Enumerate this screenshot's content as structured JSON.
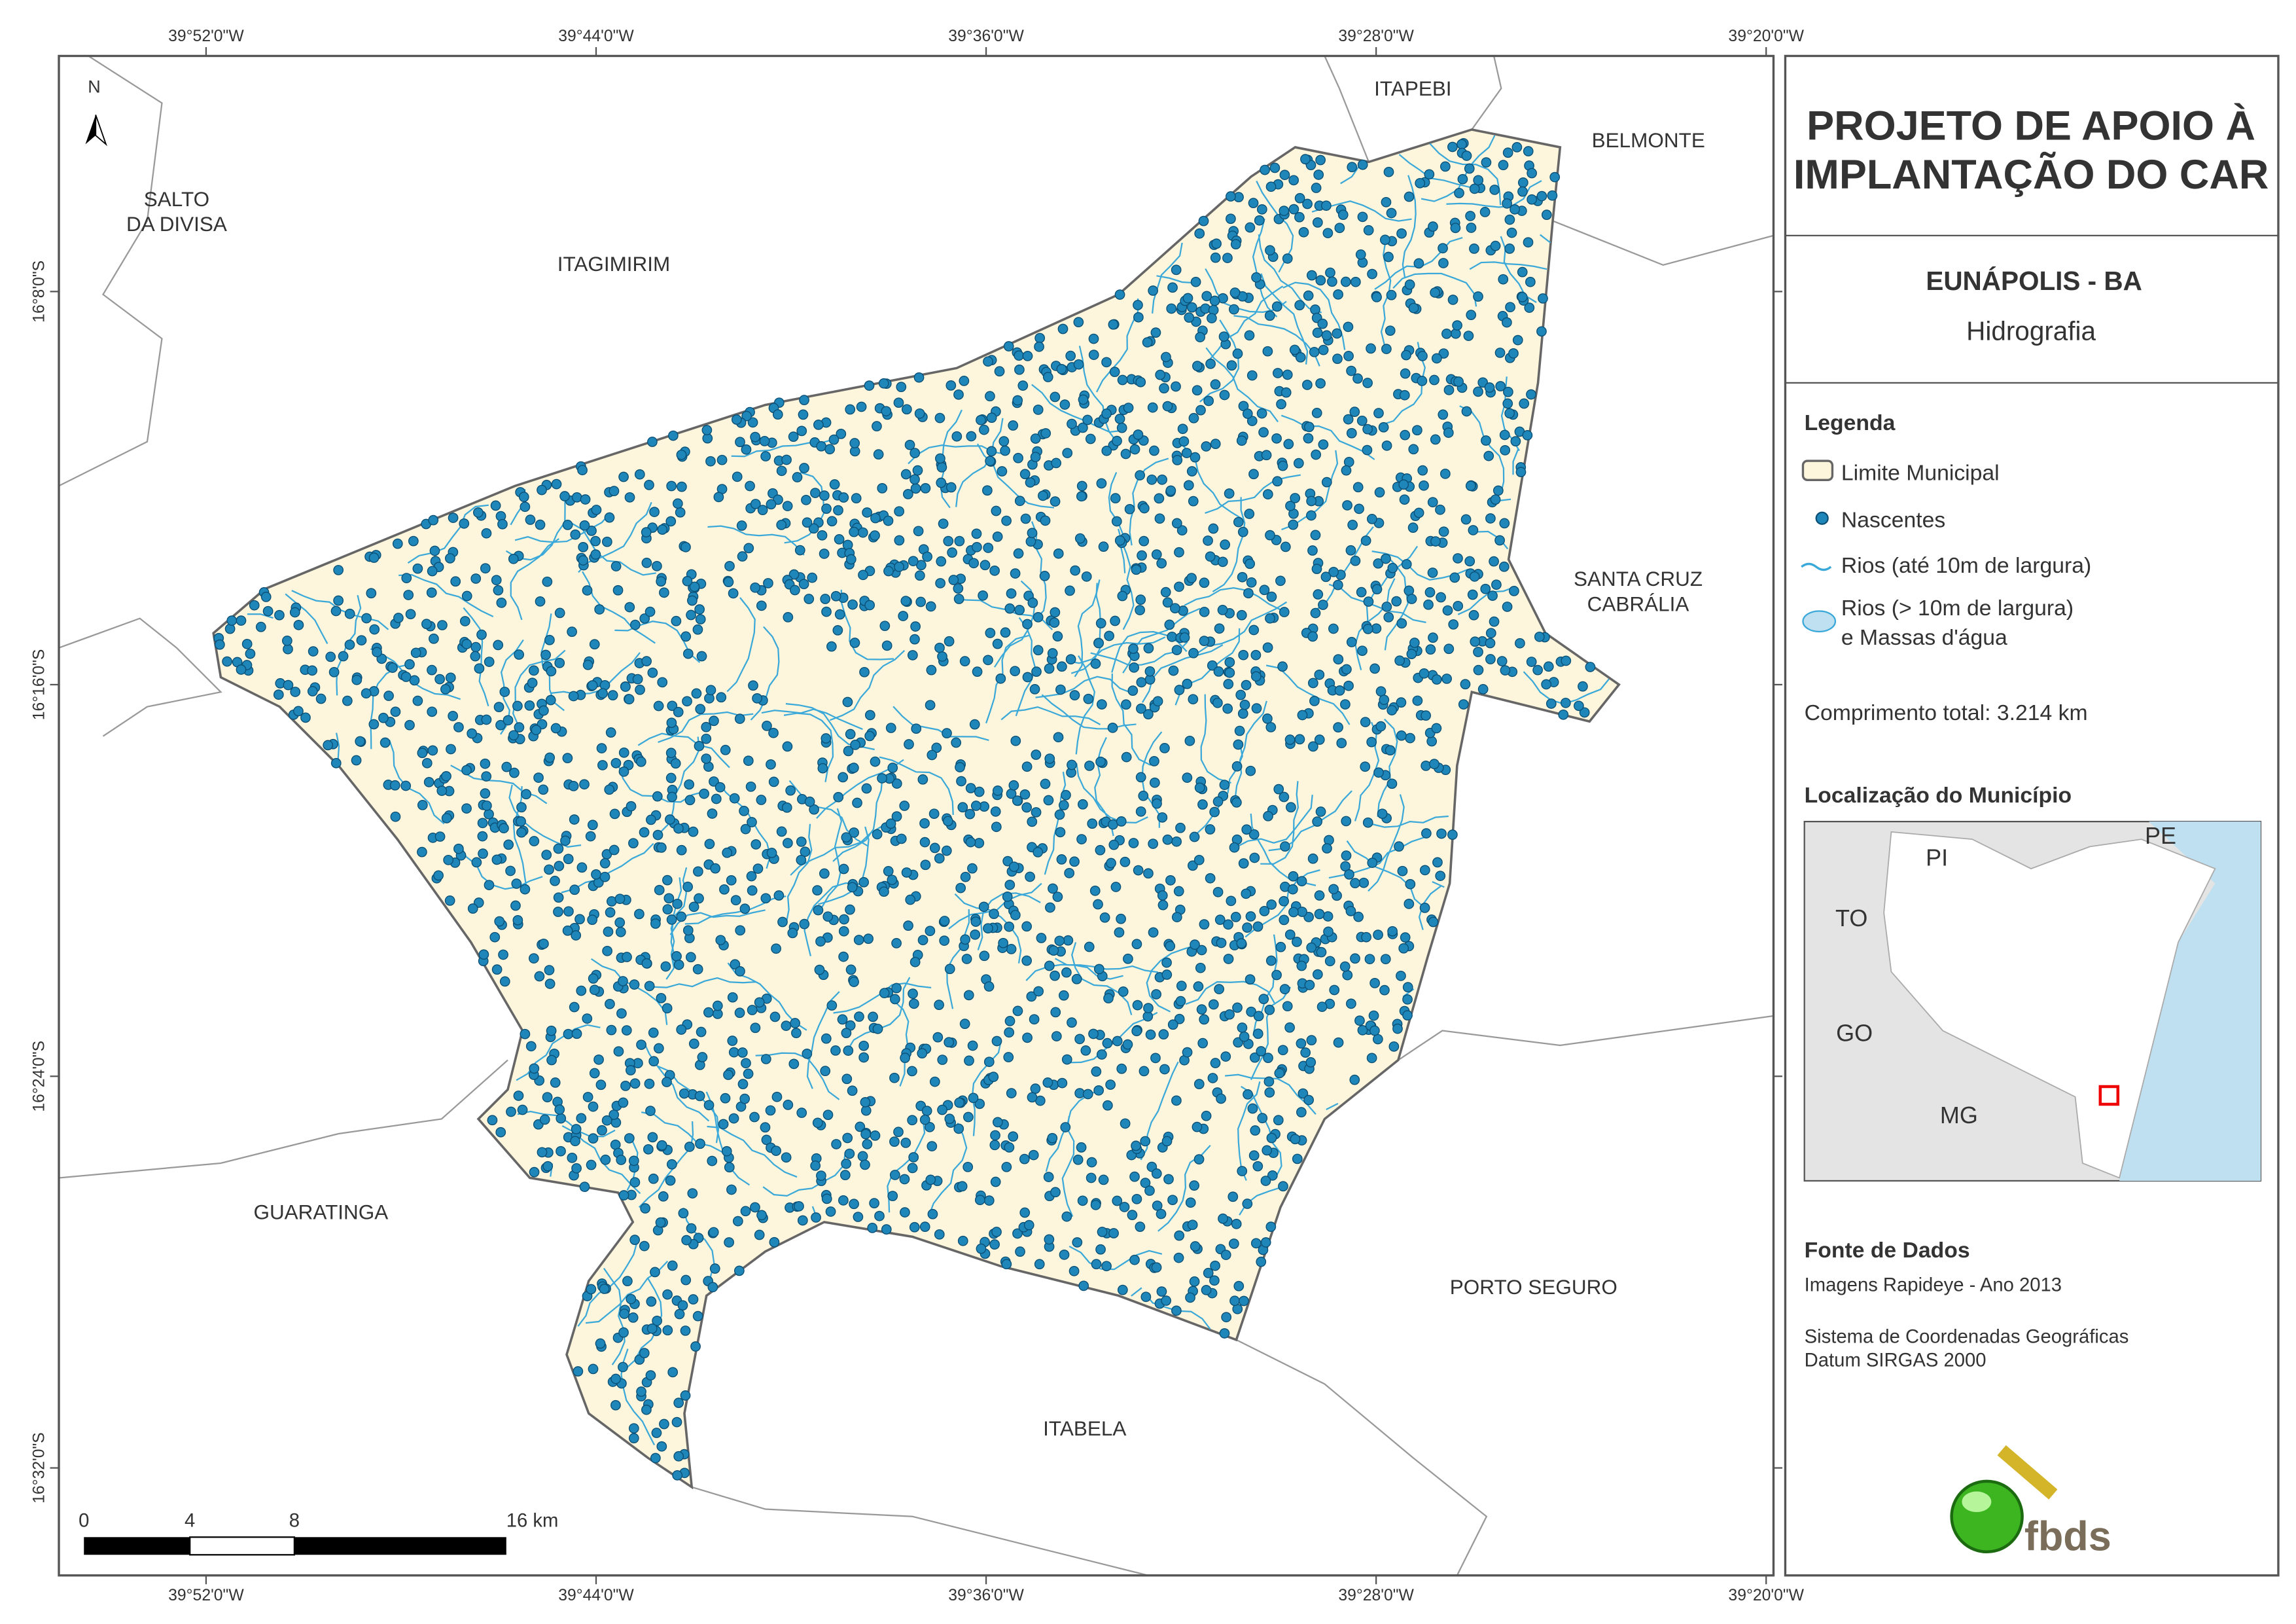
{
  "header": {
    "title": [
      "PROJETO DE APOIO À",
      "IMPLANTAÇÃO DO CAR"
    ],
    "municipality": "EUNÁPOLIS - BA",
    "theme": "Hidrografia"
  },
  "legend": {
    "title": "Legenda",
    "items": [
      {
        "lines": [
          "Limite Municipal"
        ]
      },
      {
        "lines": [
          "Nascentes"
        ]
      },
      {
        "lines": [
          "Rios (até 10m de largura)"
        ]
      },
      {
        "lines": [
          "Rios (> 10m de largura)",
          "e Massas d'água"
        ]
      }
    ],
    "total": "Comprimento total:  3.214 km"
  },
  "locator": {
    "title": "Localização do Município",
    "labels": [
      "PI",
      "PE",
      "TO",
      "GO",
      "MG"
    ]
  },
  "sources": {
    "title": "Fonte de Dados",
    "lines": [
      "Imagens Rapideye - Ano 2013",
      "Sistema de Coordenadas Geográficas",
      "Datum SIRGAS 2000"
    ]
  },
  "logo": "fbds",
  "map": {
    "north": "N",
    "neighbors": [
      {
        "lines": [
          "SALTO",
          "DA DIVISA"
        ]
      },
      {
        "lines": [
          "ITAGIMIRIM"
        ]
      },
      {
        "lines": [
          "ITAPEBI"
        ]
      },
      {
        "lines": [
          "BELMONTE"
        ]
      },
      {
        "lines": [
          "SANTA CRUZ",
          "CABRÁLIA"
        ]
      },
      {
        "lines": [
          "GUARATINGA"
        ]
      },
      {
        "lines": [
          "PORTO SEGURO"
        ]
      },
      {
        "lines": [
          "ITABELA"
        ]
      }
    ],
    "lon_labels": [
      "39°52'0\"W",
      "39°44'0\"W",
      "39°36'0\"W",
      "39°28'0\"W",
      "39°20'0\"W"
    ],
    "lat_labels": [
      "16°8'0\"S",
      "16°16'0\"S",
      "16°24'0\"S",
      "16°32'0\"S"
    ],
    "scale": [
      "0",
      "4",
      "8",
      "16 km"
    ]
  }
}
